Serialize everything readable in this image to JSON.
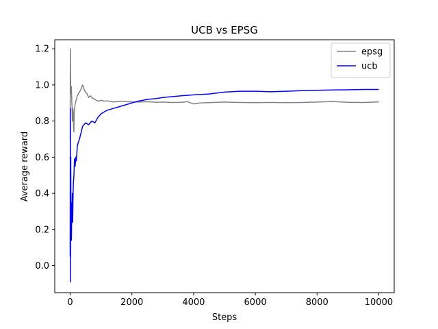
{
  "chart_data": {
    "type": "line",
    "title": "UCB vs EPSG",
    "xlabel": "Steps",
    "ylabel": "Average reward",
    "xlim": [
      -500,
      10500
    ],
    "ylim": [
      -0.15,
      1.25
    ],
    "xticks": [
      0,
      2000,
      4000,
      6000,
      8000,
      10000
    ],
    "yticks": [
      0.0,
      0.2,
      0.4,
      0.6,
      0.8,
      1.0,
      1.2
    ],
    "grid": false,
    "legend_position": "top-right",
    "series": [
      {
        "name": "epsg",
        "color": "#808080",
        "x": [
          0,
          5,
          10,
          20,
          30,
          40,
          50,
          60,
          70,
          80,
          90,
          100,
          110,
          120,
          130,
          150,
          170,
          200,
          230,
          260,
          300,
          330,
          360,
          400,
          430,
          460,
          500,
          550,
          600,
          650,
          700,
          800,
          900,
          1000,
          1100,
          1200,
          1400,
          1600,
          1800,
          2000,
          2200,
          2500,
          2800,
          3000,
          3300,
          3600,
          3800,
          4000,
          4200,
          4500,
          5000,
          5500,
          6000,
          6500,
          7000,
          7500,
          8000,
          8500,
          9000,
          9500,
          10000
        ],
        "y": [
          0.7,
          1.2,
          1.1,
          0.98,
          0.95,
          0.99,
          0.92,
          0.88,
          0.8,
          0.84,
          0.87,
          0.82,
          0.76,
          0.74,
          0.85,
          0.88,
          0.9,
          0.92,
          0.94,
          0.95,
          0.96,
          0.97,
          0.98,
          1.0,
          0.99,
          0.97,
          0.96,
          0.95,
          0.93,
          0.94,
          0.93,
          0.92,
          0.91,
          0.915,
          0.91,
          0.912,
          0.905,
          0.91,
          0.908,
          0.906,
          0.905,
          0.907,
          0.904,
          0.905,
          0.903,
          0.904,
          0.907,
          0.895,
          0.9,
          0.902,
          0.905,
          0.903,
          0.902,
          0.903,
          0.902,
          0.903,
          0.905,
          0.908,
          0.904,
          0.903,
          0.906
        ]
      },
      {
        "name": "ucb",
        "color": "#0000ff",
        "x": [
          0,
          5,
          10,
          15,
          20,
          25,
          30,
          40,
          50,
          60,
          70,
          80,
          90,
          100,
          120,
          140,
          160,
          180,
          200,
          230,
          260,
          300,
          330,
          360,
          400,
          450,
          500,
          600,
          700,
          800,
          900,
          1000,
          1100,
          1200,
          1400,
          1600,
          1800,
          2000,
          2200,
          2500,
          2800,
          3000,
          3300,
          3600,
          4000,
          4500,
          5000,
          5500,
          6000,
          6500,
          7000,
          7500,
          8000,
          8500,
          9000,
          9500,
          10000
        ],
        "y": [
          0.05,
          0.87,
          -0.09,
          0.45,
          0.6,
          0.2,
          0.35,
          0.14,
          0.28,
          0.3,
          0.4,
          0.24,
          0.35,
          0.45,
          0.5,
          0.59,
          0.55,
          0.6,
          0.58,
          0.66,
          0.68,
          0.7,
          0.72,
          0.74,
          0.77,
          0.78,
          0.79,
          0.78,
          0.8,
          0.79,
          0.82,
          0.84,
          0.85,
          0.86,
          0.87,
          0.88,
          0.89,
          0.9,
          0.91,
          0.92,
          0.925,
          0.93,
          0.935,
          0.94,
          0.945,
          0.95,
          0.96,
          0.965,
          0.965,
          0.962,
          0.965,
          0.968,
          0.97,
          0.972,
          0.973,
          0.975,
          0.975
        ]
      }
    ]
  }
}
